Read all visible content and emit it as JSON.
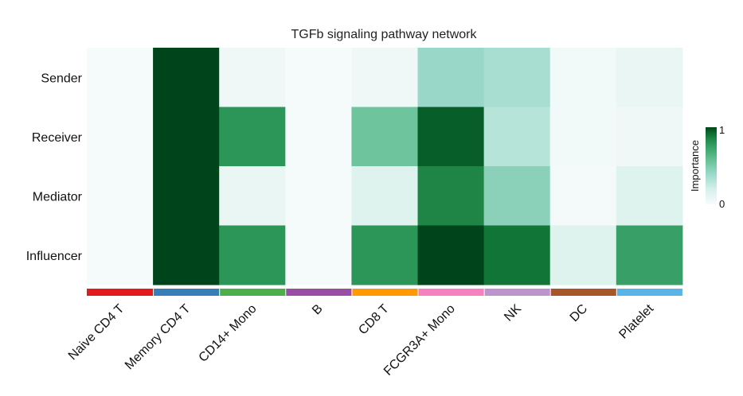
{
  "chart_data": {
    "type": "heatmap",
    "title": "TGFb signaling pathway network",
    "rows": [
      "Sender",
      "Receiver",
      "Mediator",
      "Influencer"
    ],
    "columns": [
      "Naive CD4 T",
      "Memory CD4 T",
      "CD14+ Mono",
      "B",
      "CD8 T",
      "FCGR3A+ Mono",
      "NK",
      "DC",
      "Platelet"
    ],
    "values": [
      [
        0.01,
        1.0,
        0.05,
        0.01,
        0.05,
        0.4,
        0.35,
        0.03,
        0.08
      ],
      [
        0.01,
        1.0,
        0.8,
        0.01,
        0.55,
        0.95,
        0.3,
        0.03,
        0.05
      ],
      [
        0.01,
        1.0,
        0.08,
        0.01,
        0.15,
        0.85,
        0.45,
        0.02,
        0.15
      ],
      [
        0.01,
        1.0,
        0.8,
        0.01,
        0.8,
        1.0,
        0.9,
        0.15,
        0.75
      ]
    ],
    "column_colors": [
      "#e41a1c",
      "#377eb8",
      "#4daf4a",
      "#984ea3",
      "#ff9900",
      "#f781bf",
      "#bc95cf",
      "#a65628",
      "#56b4e9"
    ],
    "colorbar": {
      "label": "Importance",
      "min": 0,
      "max": 1,
      "tick_labels": [
        "0",
        "1"
      ],
      "color_low": "#f7fbfc",
      "color_high": "#00441b"
    }
  }
}
